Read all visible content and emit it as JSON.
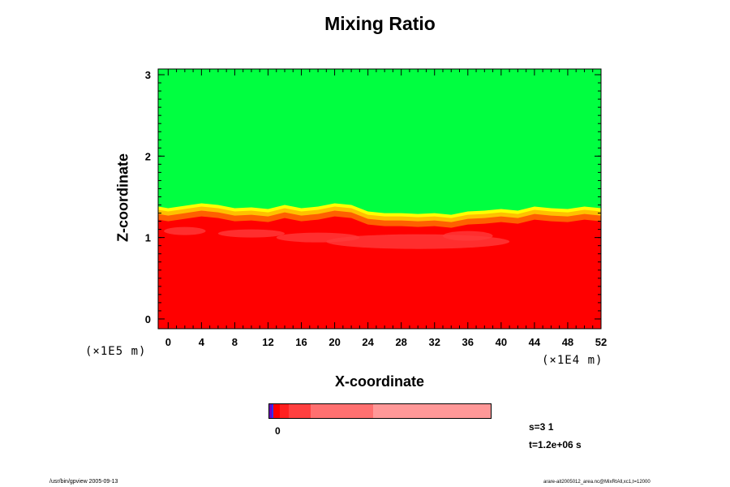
{
  "chart_data": {
    "type": "heatmap",
    "title": "Mixing Ratio",
    "xlabel": "X-coordinate",
    "ylabel": "Z-coordinate",
    "x_unit_label": "(×1E4 m)",
    "y_unit_label": "(×1E5 m)",
    "xlim": [
      -1.2,
      52
    ],
    "ylim": [
      -0.12,
      3.07
    ],
    "x_ticks": [
      "0",
      "4",
      "8",
      "12",
      "16",
      "20",
      "24",
      "28",
      "32",
      "36",
      "40",
      "44",
      "48",
      "52"
    ],
    "y_ticks": [
      "0",
      "1",
      "2",
      "3"
    ],
    "regions": [
      {
        "name": "upper",
        "color": "#00ff40",
        "z_range": [
          1.3,
          3.07
        ]
      },
      {
        "name": "transition",
        "colors": [
          "#ffff00",
          "#ffc000",
          "#ff6000"
        ],
        "z_range": [
          1.1,
          1.4
        ]
      },
      {
        "name": "lower",
        "color": "#ff0000",
        "z_range": [
          -0.12,
          1.2
        ]
      }
    ],
    "interface_profile": {
      "x": [
        -1.2,
        0,
        2,
        4,
        6,
        8,
        10,
        12,
        14,
        16,
        18,
        20,
        22,
        24,
        26,
        28,
        30,
        32,
        34,
        36,
        38,
        40,
        42,
        44,
        46,
        48,
        50,
        52
      ],
      "z": [
        1.38,
        1.36,
        1.39,
        1.42,
        1.4,
        1.36,
        1.37,
        1.35,
        1.4,
        1.36,
        1.38,
        1.42,
        1.4,
        1.32,
        1.3,
        1.3,
        1.29,
        1.3,
        1.28,
        1.32,
        1.33,
        1.35,
        1.33,
        1.38,
        1.36,
        1.35,
        1.38,
        1.36
      ]
    },
    "colorbar": {
      "tick_label": "0",
      "colors": [
        "#7000c0",
        "#3030ff",
        "#ff0000",
        "#ff2020",
        "#ff4040",
        "#ff7070",
        "#ff9898"
      ],
      "widths": [
        3,
        2,
        7,
        10,
        25,
        70,
        133
      ]
    }
  },
  "info": {
    "step": "s=3 1",
    "time": "t=1.2e+06 s"
  },
  "footer": {
    "left": "/usr/bin/gpview 2005-09-13",
    "right": "arare-ait2005012_area.nc@MixRtAll,xc1,t=12000"
  }
}
